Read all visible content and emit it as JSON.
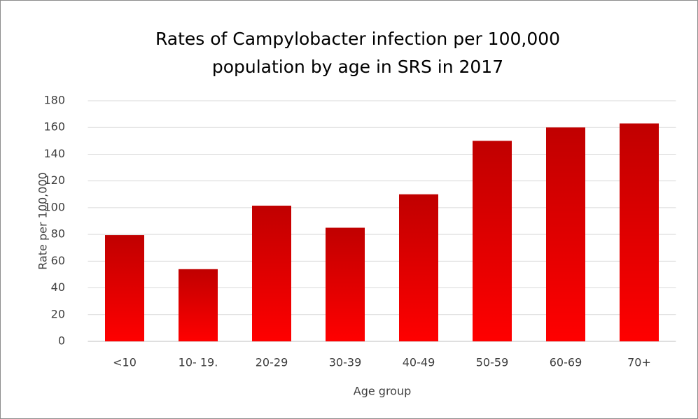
{
  "chart_data": {
    "type": "bar",
    "title": "Rates of Campylobacter infection per 100,000 population by age in SRS in 2017",
    "x_label": "Age group",
    "y_label": "Rate per 100,000",
    "categories": [
      "<10",
      "10- 19.",
      "20-29",
      "30-39",
      "40-49",
      "50-59",
      "60-69",
      "70+"
    ],
    "values": [
      79.5,
      54,
      101.5,
      85,
      110,
      150,
      160,
      163
    ],
    "color": "#c00000",
    "color_bottom": "#ff0000",
    "ylim": [
      0,
      180
    ],
    "yticks": [
      0,
      20,
      40,
      60,
      80,
      100,
      120,
      140,
      160,
      180
    ],
    "grid": true
  }
}
